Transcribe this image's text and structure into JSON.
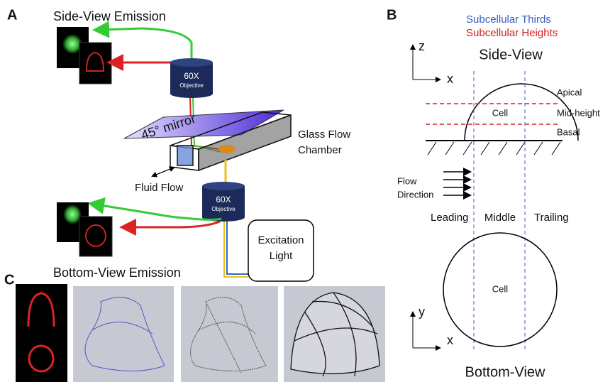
{
  "panel_a": {
    "label": "A",
    "side_view_emission": "Side-View Emission",
    "top_objective": [
      "60X",
      "Objective"
    ],
    "mirror": "45° mirror",
    "chamber": [
      "Glass Flow",
      "Chamber"
    ],
    "fluid_flow": "Fluid Flow",
    "bottom_objective": [
      "60X",
      "Objective"
    ],
    "excitation": [
      "Excitation",
      "Light"
    ],
    "bottom_view_emission": "Bottom-View Emission"
  },
  "panel_b": {
    "label": "B",
    "legend": [
      "Subcellular Thirds",
      "Subcellular Heights"
    ],
    "side_axes": [
      "z",
      "x"
    ],
    "side_view": "Side-View",
    "heights": [
      "Apical",
      "Mid-height",
      "Basal"
    ],
    "side_cell": "Cell",
    "flow_direction": [
      "Flow",
      "Direction"
    ],
    "thirds": [
      "Leading",
      "Middle",
      "Trailing"
    ],
    "bottom_cell": "Cell",
    "bottom_axes": [
      "y",
      "x"
    ],
    "bottom_view": "Bottom-View"
  },
  "panel_c": {
    "label": "C"
  }
}
